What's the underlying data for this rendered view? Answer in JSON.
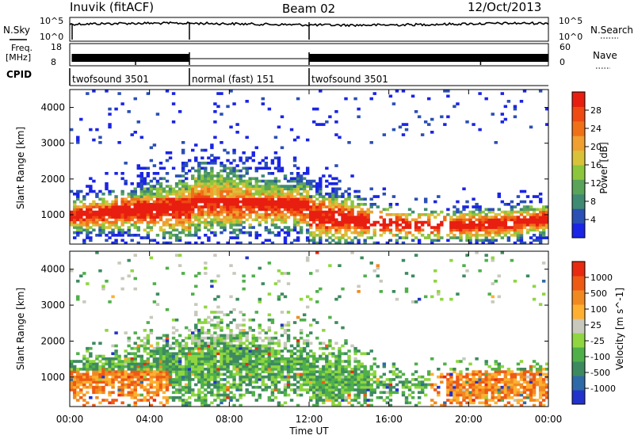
{
  "header": {
    "station": "Inuvik (fitACF)",
    "beam": "Beam 02",
    "date": "12/Oct/2013"
  },
  "left_labels": {
    "nsky": "N.Sky",
    "freq_top": "Freq.",
    "freq_unit": "[MHz]",
    "cpid": "CPID"
  },
  "right_labels": {
    "nsearch": "N.Search",
    "nave": "Nave"
  },
  "tick_labels": {
    "noise_left_top": "10^5",
    "noise_left_bottom": "10^0",
    "noise_right_top": "10^5",
    "noise_right_bottom": "10^0",
    "freq_left_top": "18",
    "freq_left_bottom": "8",
    "nave_right_top": "60",
    "nave_right_bottom": "0"
  },
  "cpid_segments": [
    {
      "label": "twofsound 3501",
      "start_hour": 0,
      "end_hour": 6
    },
    {
      "label": "normal (fast) 151",
      "start_hour": 6,
      "end_hour": 12
    },
    {
      "label": "twofsound 3501",
      "start_hour": 12,
      "end_hour": 24
    }
  ],
  "chart_data": [
    {
      "type": "heatmap",
      "name": "power",
      "ylabel": "Slant Range [km]",
      "colorbar_label": "Power [dB]",
      "x_range_hours": [
        0,
        24
      ],
      "ylim": [
        180,
        4500
      ],
      "yticks": [
        1000,
        2000,
        3000,
        4000
      ],
      "colorbar": {
        "ticks": [
          "4",
          "8",
          "12",
          "16",
          "20",
          "24",
          "28"
        ],
        "colors": [
          "#1a24e6",
          "#2a4fb5",
          "#3f8a73",
          "#5aa45a",
          "#8cc63c",
          "#d8c23a",
          "#f0a030",
          "#f07018",
          "#ee4a12",
          "#e81e10"
        ]
      }
    },
    {
      "type": "heatmap",
      "name": "velocity",
      "ylabel": "Slant Range [km]",
      "colorbar_label": "Velocity [m s^-1]",
      "x_range_hours": [
        0,
        24
      ],
      "ylim": [
        180,
        4500
      ],
      "yticks": [
        1000,
        2000,
        3000,
        4000
      ],
      "colorbar": {
        "ticks": [
          "1000",
          "500",
          "100",
          "25",
          "-25",
          "-100",
          "-500",
          "-1000"
        ],
        "colors": [
          "#2233cc",
          "#2e6aa8",
          "#3e8a60",
          "#4fb04a",
          "#8fd640",
          "#c8c8bc",
          "#ffb030",
          "#f08a20",
          "#ee5a14",
          "#e82a10"
        ]
      }
    }
  ],
  "xaxis": {
    "ticks": [
      "00:00",
      "04:00",
      "08:00",
      "12:00",
      "16:00",
      "20:00",
      "00:00"
    ],
    "label": "Time UT"
  }
}
